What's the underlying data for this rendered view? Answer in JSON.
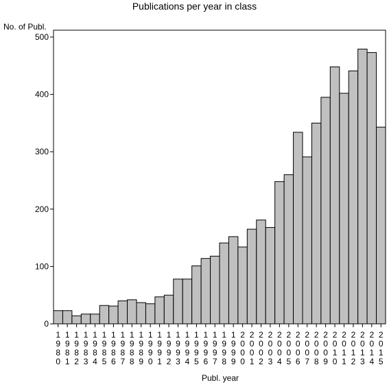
{
  "chart_data": {
    "type": "bar",
    "title": "Publications per year in class",
    "ylabel": "No. of Publ.",
    "xlabel": "Publ. year",
    "ylim": [
      0,
      500
    ],
    "yticks": [
      0,
      100,
      200,
      300,
      400,
      500
    ],
    "grid": false,
    "colors": {
      "bar_fill": "#c0c0c0",
      "bar_stroke": "#000000"
    },
    "categories": [
      "1980",
      "1981",
      "1982",
      "1983",
      "1984",
      "1985",
      "1986",
      "1987",
      "1988",
      "1989",
      "1990",
      "1991",
      "1992",
      "1993",
      "1994",
      "1995",
      "1996",
      "1997",
      "1998",
      "1999",
      "2000",
      "2001",
      "2002",
      "2003",
      "2004",
      "2005",
      "2006",
      "2007",
      "2008",
      "2009",
      "2010",
      "2011",
      "2012",
      "2013",
      "2014",
      "2015"
    ],
    "values": [
      23,
      23,
      14,
      17,
      17,
      32,
      31,
      40,
      42,
      37,
      35,
      47,
      50,
      78,
      78,
      101,
      114,
      118,
      141,
      152,
      134,
      165,
      181,
      168,
      248,
      260,
      334,
      291,
      350,
      395,
      448,
      402,
      441,
      479,
      473,
      343
    ]
  }
}
